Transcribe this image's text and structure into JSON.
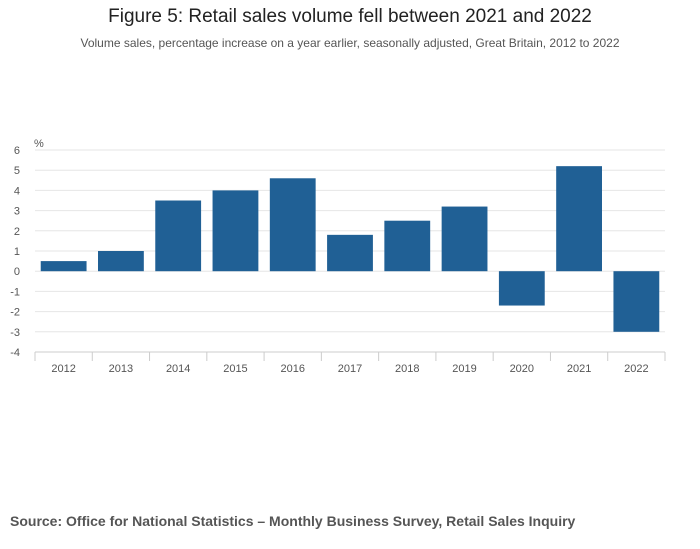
{
  "chart_data": {
    "type": "bar",
    "title": "Figure 5: Retail sales volume fell between 2021 and 2022",
    "subtitle": "Volume sales, percentage increase on a year earlier, seasonally adjusted, Great Britain, 2012 to 2022",
    "ylabel": "%",
    "xlabel": "",
    "ylim": [
      -4,
      6
    ],
    "yticks": [
      6,
      5,
      4,
      3,
      2,
      1,
      0,
      -1,
      -2,
      -3,
      -4
    ],
    "ytick_labels": [
      "6",
      "5",
      "4",
      "3",
      "2",
      "1",
      "0",
      "-1",
      "-2",
      "-3",
      "-4"
    ],
    "categories": [
      "2012",
      "2013",
      "2014",
      "2015",
      "2016",
      "2017",
      "2018",
      "2019",
      "2020",
      "2021",
      "2022"
    ],
    "values": [
      0.5,
      1.0,
      3.5,
      4.0,
      4.6,
      1.8,
      2.5,
      3.2,
      -1.7,
      5.2,
      -3.0
    ],
    "bar_color": "#206095",
    "grid": true,
    "legend": "none"
  },
  "source": "Source: Office for National Statistics – Monthly Business Survey, Retail Sales Inquiry"
}
